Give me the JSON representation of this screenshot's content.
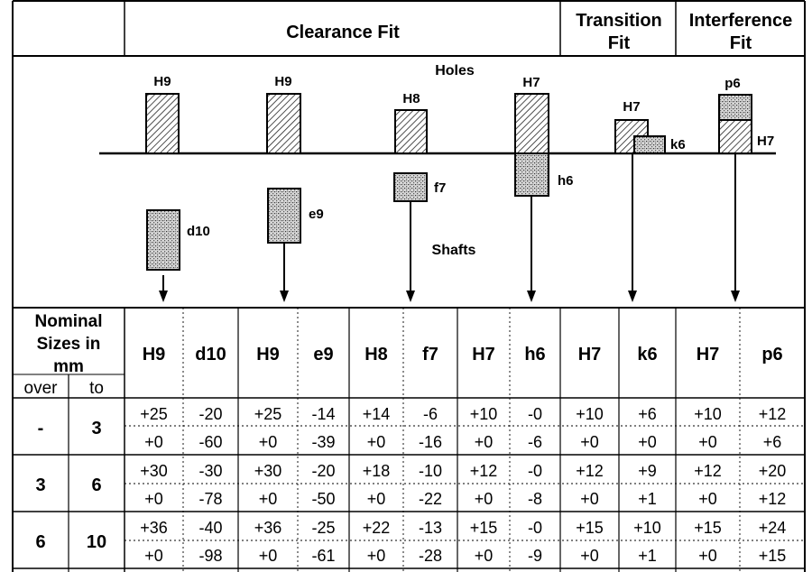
{
  "header": {
    "clearance": "Clearance Fit",
    "transition": [
      "Transition",
      "Fit"
    ],
    "interference": [
      "Interference",
      "Fit"
    ]
  },
  "diagram": {
    "holes_label": "Holes",
    "shafts_label": "Shafts",
    "hole_labels": [
      "H9",
      "H9",
      "H8",
      "H7",
      "H7",
      "H7",
      "p6"
    ],
    "shaft_labels": [
      "d10",
      "e9",
      "f7",
      "h6",
      "k6"
    ]
  },
  "table": {
    "nominal_label": [
      "Nominal",
      "Sizes in",
      "mm"
    ],
    "over_label": "over",
    "to_label": "to",
    "columns": [
      "H9",
      "d10",
      "H9",
      "e9",
      "H8",
      "f7",
      "H7",
      "h6",
      "H7",
      "k6",
      "H7",
      "p6"
    ],
    "rows": [
      {
        "over": "-",
        "to": "3",
        "upper": [
          "+25",
          "-20",
          "+25",
          "-14",
          "+14",
          "-6",
          "+10",
          "-0",
          "+10",
          "+6",
          "+10",
          "+12"
        ],
        "lower": [
          "+0",
          "-60",
          "+0",
          "-39",
          "+0",
          "-16",
          "+0",
          "-6",
          "+0",
          "+0",
          "+0",
          "+6"
        ]
      },
      {
        "over": "3",
        "to": "6",
        "upper": [
          "+30",
          "-30",
          "+30",
          "-20",
          "+18",
          "-10",
          "+12",
          "-0",
          "+12",
          "+9",
          "+12",
          "+20"
        ],
        "lower": [
          "+0",
          "-78",
          "+0",
          "-50",
          "+0",
          "-22",
          "+0",
          "-8",
          "+0",
          "+1",
          "+0",
          "+12"
        ]
      },
      {
        "over": "6",
        "to": "10",
        "upper": [
          "+36",
          "-40",
          "+36",
          "-25",
          "+22",
          "-13",
          "+15",
          "-0",
          "+15",
          "+10",
          "+15",
          "+24"
        ],
        "lower": [
          "+0",
          "-98",
          "+0",
          "-61",
          "+0",
          "-28",
          "+0",
          "-9",
          "+0",
          "+1",
          "+0",
          "+15"
        ]
      }
    ]
  }
}
